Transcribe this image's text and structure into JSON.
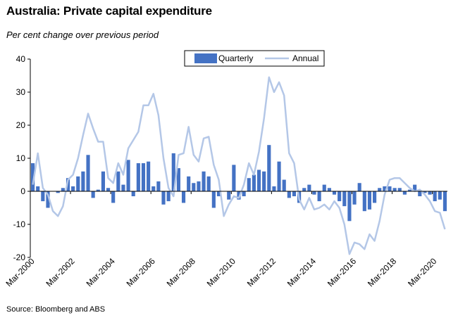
{
  "header": {
    "title": "Australia: Private capital expenditure",
    "subtitle": "Per cent change over previous period"
  },
  "footer": {
    "source": "Source: Bloomberg and ABS"
  },
  "colors": {
    "quarterly": "#4472C4",
    "annual": "#B4C7E7",
    "axis": "#000000"
  },
  "chart_data": {
    "type": "bar",
    "ylim": [
      -20,
      40
    ],
    "yticks": [
      -20,
      -10,
      0,
      10,
      20,
      30,
      40
    ],
    "xticks": [
      {
        "label": "Mar-2000",
        "index": 0
      },
      {
        "label": "Mar-2002",
        "index": 8
      },
      {
        "label": "Mar-2004",
        "index": 16
      },
      {
        "label": "Mar-2006",
        "index": 24
      },
      {
        "label": "Mar-2008",
        "index": 32
      },
      {
        "label": "Mar-2010",
        "index": 40
      },
      {
        "label": "Mar-2012",
        "index": 48
      },
      {
        "label": "Mar-2014",
        "index": 56
      },
      {
        "label": "Mar-2016",
        "index": 64
      },
      {
        "label": "Mar-2018",
        "index": 72
      },
      {
        "label": "Mar-2020",
        "index": 80
      }
    ],
    "legend": {
      "position": "top-center",
      "entries": [
        "Quarterly",
        "Annual"
      ]
    },
    "series": [
      {
        "name": "Quarterly",
        "type": "bar",
        "values": [
          8.5,
          1.5,
          -3,
          -5,
          0,
          -0.5,
          1,
          4,
          1.5,
          4.5,
          6,
          11,
          -2,
          0.5,
          6,
          1,
          -3.5,
          6,
          2,
          9.5,
          -1.5,
          8.5,
          8.5,
          9,
          1.5,
          3,
          -4,
          -3,
          11.5,
          7,
          -3.5,
          4.5,
          2.5,
          3,
          6,
          4.5,
          -5,
          -1.5,
          0,
          -2.5,
          8,
          -2.5,
          -1.5,
          4,
          5,
          6.5,
          6,
          14,
          1.5,
          9,
          3.5,
          -2,
          -1.5,
          -3.5,
          1,
          2,
          -1,
          -3,
          2,
          1,
          -1,
          -3,
          -4.5,
          -9,
          -4,
          2.5,
          -6,
          -5.5,
          -3.5,
          1,
          1.5,
          1.5,
          1,
          1,
          -1,
          0.5,
          2,
          -1.5,
          -0.5,
          -1,
          -3,
          -2.5,
          -6
        ]
      },
      {
        "name": "Annual",
        "type": "line",
        "values": [
          2,
          11.5,
          1,
          -1,
          -6,
          -7.5,
          -4.5,
          3.5,
          5,
          10,
          17,
          23.5,
          19,
          15,
          15,
          4,
          2.5,
          8.5,
          5,
          13,
          15.5,
          18,
          26,
          26,
          29.5,
          23,
          10,
          1,
          -1.5,
          11,
          11.5,
          19.5,
          11,
          9,
          16,
          16.5,
          8,
          3.5,
          -7.5,
          -4,
          -1.5,
          -2,
          2,
          8.5,
          5,
          12,
          22,
          34.5,
          30,
          33,
          29,
          11.5,
          8.5,
          -2.5,
          -5.5,
          -2,
          -5.5,
          -5,
          -4,
          -5.5,
          -3,
          -5,
          -10,
          -19,
          -15.5,
          -16,
          -17.5,
          -13,
          -15,
          -9,
          -1,
          3.5,
          4,
          4,
          2.5,
          1,
          0,
          0.5,
          -1,
          -3,
          -6,
          -6.5,
          -11.5
        ]
      }
    ]
  }
}
